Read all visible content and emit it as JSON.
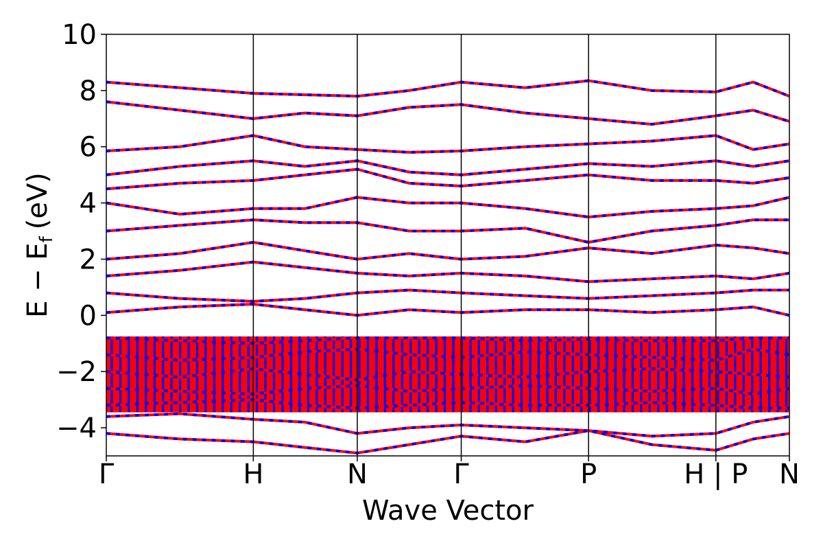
{
  "chart_data": {
    "type": "line",
    "title": "",
    "xlabel": "Wave Vector",
    "ylabel_main": "E − E",
    "ylabel_sub": "f",
    "ylabel_unit": "(eV)",
    "ylim": [
      -5,
      10
    ],
    "yticks": [
      -4,
      -2,
      0,
      2,
      4,
      6,
      8,
      10
    ],
    "ytick_labels": [
      "−4",
      "−2",
      "0",
      "2",
      "4",
      "6",
      "8",
      "10"
    ],
    "grid": false,
    "legend": "none",
    "kpath_positions": [
      0,
      1.0,
      1.7071,
      2.4142,
      3.2802,
      4.1463,
      4.6463
    ],
    "kpath_labels": [
      "Γ",
      "H",
      "N",
      "Γ",
      "P",
      "H | P",
      "N"
    ],
    "band_colors": {
      "spin_up": "#ff0000",
      "spin_down": "#0000ff"
    },
    "series": [
      {
        "name": "",
        "x": [
          0,
          0.5,
          1.0,
          1.35,
          1.7071,
          2.06,
          2.4142,
          2.85,
          3.2802,
          3.71,
          4.1463,
          4.4,
          4.6463
        ],
        "y": [
          8.3,
          8.1,
          7.9,
          7.85,
          7.8,
          8.0,
          8.3,
          8.1,
          8.35,
          8.0,
          7.95,
          8.3,
          7.8
        ]
      },
      {
        "name": "",
        "x": [
          0,
          0.5,
          1.0,
          1.35,
          1.7071,
          2.06,
          2.4142,
          2.85,
          3.2802,
          3.71,
          4.1463,
          4.4,
          4.6463
        ],
        "y": [
          7.6,
          7.3,
          7.0,
          7.2,
          7.1,
          7.4,
          7.5,
          7.2,
          7.0,
          6.8,
          7.1,
          7.3,
          6.9
        ]
      },
      {
        "name": "",
        "x": [
          0,
          0.5,
          1.0,
          1.35,
          1.7071,
          2.06,
          2.4142,
          2.85,
          3.2802,
          3.71,
          4.1463,
          4.4,
          4.6463
        ],
        "y": [
          5.85,
          6.0,
          6.4,
          6.0,
          5.9,
          5.8,
          5.85,
          6.0,
          6.1,
          6.2,
          6.4,
          5.9,
          6.1
        ]
      },
      {
        "name": "",
        "x": [
          0,
          0.5,
          1.0,
          1.35,
          1.7071,
          2.06,
          2.4142,
          2.85,
          3.2802,
          3.71,
          4.1463,
          4.4,
          4.6463
        ],
        "y": [
          5.0,
          5.3,
          5.5,
          5.3,
          5.5,
          5.1,
          5.0,
          5.2,
          5.4,
          5.3,
          5.5,
          5.3,
          5.5
        ]
      },
      {
        "name": "",
        "x": [
          0,
          0.5,
          1.0,
          1.35,
          1.7071,
          2.06,
          2.4142,
          2.85,
          3.2802,
          3.71,
          4.1463,
          4.4,
          4.6463
        ],
        "y": [
          4.5,
          4.7,
          4.8,
          5.0,
          5.2,
          4.7,
          4.6,
          4.8,
          5.0,
          4.8,
          4.8,
          4.7,
          4.9
        ]
      },
      {
        "name": "",
        "x": [
          0,
          0.5,
          1.0,
          1.35,
          1.7071,
          2.06,
          2.4142,
          2.85,
          3.2802,
          3.71,
          4.1463,
          4.4,
          4.6463
        ],
        "y": [
          4.0,
          3.6,
          3.8,
          3.8,
          4.2,
          4.0,
          4.0,
          3.8,
          3.5,
          3.7,
          3.8,
          3.9,
          4.2
        ]
      },
      {
        "name": "",
        "x": [
          0,
          0.5,
          1.0,
          1.35,
          1.7071,
          2.06,
          2.4142,
          2.85,
          3.2802,
          3.71,
          4.1463,
          4.4,
          4.6463
        ],
        "y": [
          3.0,
          3.2,
          3.4,
          3.3,
          3.3,
          3.0,
          3.0,
          3.1,
          2.6,
          3.0,
          3.2,
          3.4,
          3.4
        ]
      },
      {
        "name": "",
        "x": [
          0,
          0.5,
          1.0,
          1.35,
          1.7071,
          2.06,
          2.4142,
          2.85,
          3.2802,
          3.71,
          4.1463,
          4.4,
          4.6463
        ],
        "y": [
          2.0,
          2.2,
          2.6,
          2.3,
          2.0,
          2.2,
          2.0,
          2.1,
          2.4,
          2.2,
          2.5,
          2.4,
          2.2
        ]
      },
      {
        "name": "",
        "x": [
          0,
          0.5,
          1.0,
          1.35,
          1.7071,
          2.06,
          2.4142,
          2.85,
          3.2802,
          3.71,
          4.1463,
          4.4,
          4.6463
        ],
        "y": [
          1.4,
          1.6,
          1.9,
          1.7,
          1.5,
          1.4,
          1.5,
          1.4,
          1.2,
          1.3,
          1.4,
          1.3,
          1.5
        ]
      },
      {
        "name": "",
        "x": [
          0,
          0.5,
          1.0,
          1.35,
          1.7071,
          2.06,
          2.4142,
          2.85,
          3.2802,
          3.71,
          4.1463,
          4.4,
          4.6463
        ],
        "y": [
          0.8,
          0.6,
          0.5,
          0.6,
          0.8,
          0.9,
          0.8,
          0.7,
          0.6,
          0.7,
          0.8,
          0.9,
          0.9
        ]
      },
      {
        "name": "",
        "x": [
          0,
          0.5,
          1.0,
          1.35,
          1.7071,
          2.06,
          2.4142,
          2.85,
          3.2802,
          3.71,
          4.1463,
          4.4,
          4.6463
        ],
        "y": [
          0.1,
          0.3,
          0.4,
          0.2,
          0.0,
          0.2,
          0.1,
          0.2,
          0.2,
          0.1,
          0.2,
          0.3,
          0.0
        ]
      },
      {
        "name": "",
        "x": [
          0,
          0.5,
          1.0,
          1.35,
          1.7071,
          2.06,
          2.4142,
          2.85,
          3.2802,
          3.71,
          4.1463,
          4.4,
          4.6463
        ],
        "y": [
          -0.8,
          -0.9,
          -1.0,
          -0.9,
          -0.8,
          -0.8,
          -0.8,
          -0.9,
          -0.85,
          -0.9,
          -0.9,
          -0.8,
          -0.8
        ]
      },
      {
        "name": "",
        "x": [
          0,
          0.5,
          1.0,
          1.35,
          1.7071,
          2.06,
          2.4142,
          2.85,
          3.2802,
          3.71,
          4.1463,
          4.4,
          4.6463
        ],
        "y": [
          -1.4,
          -1.6,
          -1.5,
          -1.3,
          -1.2,
          -1.4,
          -1.5,
          -1.3,
          -1.4,
          -1.5,
          -1.6,
          -1.2,
          -1.4
        ]
      },
      {
        "name": "",
        "x": [
          0,
          0.5,
          1.0,
          1.35,
          1.7071,
          2.06,
          2.4142,
          2.85,
          3.2802,
          3.71,
          4.1463,
          4.4,
          4.6463
        ],
        "y": [
          -2.0,
          -2.2,
          -1.9,
          -2.1,
          -2.3,
          -2.0,
          -2.1,
          -2.2,
          -2.0,
          -1.9,
          -2.0,
          -2.1,
          -2.2
        ]
      },
      {
        "name": "",
        "x": [
          0,
          0.5,
          1.0,
          1.35,
          1.7071,
          2.06,
          2.4142,
          2.85,
          3.2802,
          3.71,
          4.1463,
          4.4,
          4.6463
        ],
        "y": [
          -2.6,
          -2.7,
          -2.8,
          -2.6,
          -2.5,
          -2.7,
          -2.6,
          -2.5,
          -2.6,
          -2.7,
          -2.6,
          -2.8,
          -2.6
        ]
      },
      {
        "name": "",
        "x": [
          0,
          0.5,
          1.0,
          1.35,
          1.7071,
          2.06,
          2.4142,
          2.85,
          3.2802,
          3.71,
          4.1463,
          4.4,
          4.6463
        ],
        "y": [
          -3.2,
          -3.1,
          -3.0,
          -3.2,
          -3.3,
          -3.2,
          -3.1,
          -3.2,
          -3.2,
          -3.1,
          -3.2,
          -3.3,
          -3.3
        ]
      },
      {
        "name": "",
        "x": [
          0,
          0.5,
          1.0,
          1.35,
          1.7071,
          2.06,
          2.4142,
          2.85,
          3.2802,
          3.71,
          4.1463,
          4.4,
          4.6463
        ],
        "y": [
          -3.6,
          -3.5,
          -3.7,
          -3.8,
          -4.2,
          -4.0,
          -3.9,
          -4.0,
          -4.1,
          -4.3,
          -4.2,
          -3.8,
          -3.6
        ]
      },
      {
        "name": "",
        "x": [
          0,
          0.5,
          1.0,
          1.35,
          1.7071,
          2.06,
          2.4142,
          2.85,
          3.2802,
          3.71,
          4.1463,
          4.4,
          4.6463
        ],
        "y": [
          -4.2,
          -4.4,
          -4.5,
          -4.7,
          -4.9,
          -4.6,
          -4.3,
          -4.5,
          -4.1,
          -4.6,
          -4.8,
          -4.4,
          -4.2
        ]
      }
    ]
  }
}
